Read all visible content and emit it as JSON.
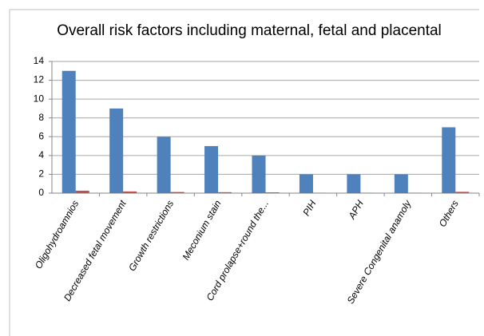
{
  "chart_data": {
    "type": "bar",
    "title": "Overall risk factors including maternal, fetal and placental",
    "categories": [
      "Oligohydroamnios",
      "Decreased fetal movement",
      "Growth restrictions",
      "Meconium stain",
      "Cord prolapse+round the...",
      "PIH",
      "APH",
      "Severe Congenital anamoly",
      "Others"
    ],
    "series": [
      {
        "color": "#4f81bd",
        "values": [
          13,
          9,
          6,
          5,
          4,
          2,
          2,
          2,
          7
        ]
      },
      {
        "color": "#c0504d",
        "values": [
          0.26,
          0.18,
          0.12,
          0.1,
          0.08,
          0.04,
          0.04,
          0.04,
          0.14
        ]
      }
    ],
    "ylim": [
      0,
      14
    ],
    "yticks": [
      0,
      2,
      4,
      6,
      8,
      10,
      12,
      14
    ],
    "grid": true
  }
}
